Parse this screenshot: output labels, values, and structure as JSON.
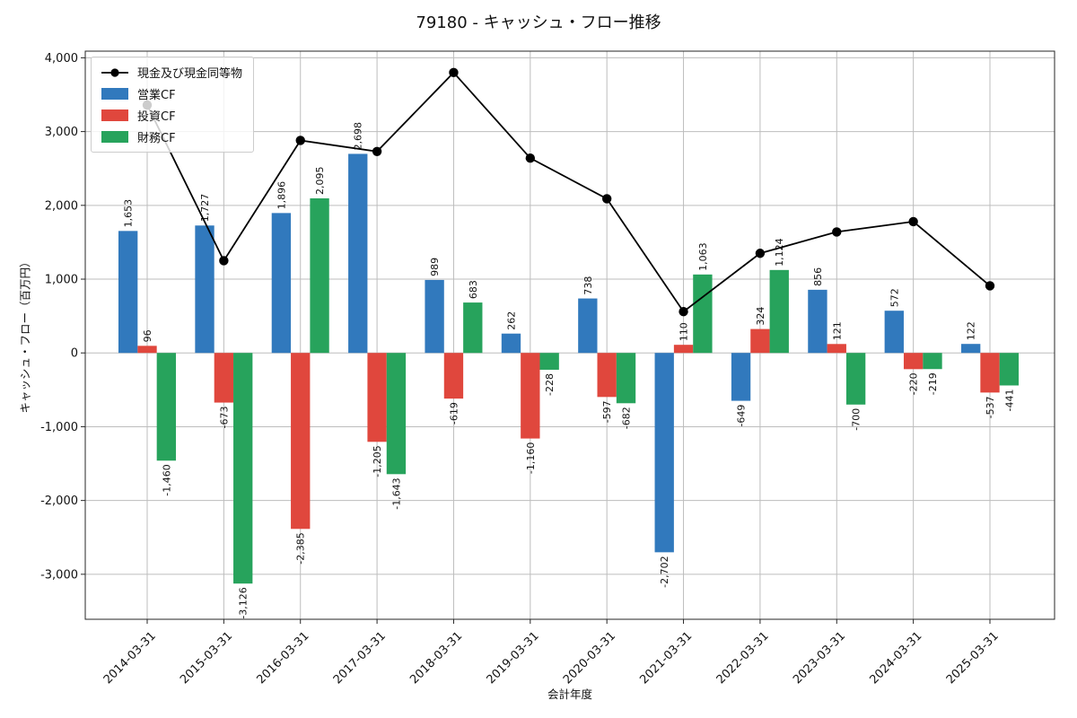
{
  "header": {
    "title": "79180 - キャッシュ・フロー推移"
  },
  "chart_data": {
    "type": "bar",
    "title": "79180 - キャッシュ・フロー推移",
    "xlabel": "会計年度",
    "ylabel": "キャッシュ・フロー（百万円）",
    "categories": [
      "2014-03-31",
      "2015-03-31",
      "2016-03-31",
      "2017-03-31",
      "2018-03-31",
      "2019-03-31",
      "2020-03-31",
      "2021-03-31",
      "2022-03-31",
      "2023-03-31",
      "2024-03-31",
      "2025-03-31"
    ],
    "series": [
      {
        "name": "営業CF",
        "type": "bar",
        "color": "#3179bd",
        "values": [
          1653,
          1727,
          1896,
          2698,
          989,
          262,
          738,
          -2702,
          -649,
          856,
          572,
          122
        ]
      },
      {
        "name": "投資CF",
        "type": "bar",
        "color": "#e0473d",
        "values": [
          96,
          -673,
          -2385,
          -1205,
          -619,
          -1160,
          -597,
          110,
          324,
          121,
          -220,
          -537
        ]
      },
      {
        "name": "財務CF",
        "type": "bar",
        "color": "#27a35c",
        "values": [
          -1460,
          -3126,
          2095,
          -1643,
          683,
          -228,
          -682,
          1063,
          1124,
          -700,
          -219,
          -441
        ]
      },
      {
        "name": "現金及び現金同等物",
        "type": "line",
        "color": "#000000",
        "values": [
          3360,
          1250,
          2880,
          2730,
          3800,
          2640,
          2090,
          560,
          1350,
          1640,
          1780,
          910
        ]
      }
    ],
    "yticks": [
      -3000,
      -2000,
      -1000,
      0,
      1000,
      2000,
      3000,
      4000
    ],
    "ylim": [
      -3610,
      4090
    ],
    "grid": true,
    "legend_position": "upper left",
    "bar_value_labels": true
  }
}
